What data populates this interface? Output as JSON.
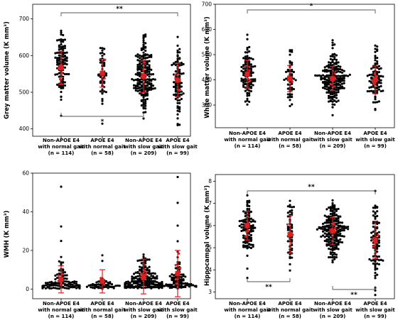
{
  "figure": {
    "categories": [
      [
        "Non-APOE E4",
        "with normal gait",
        "(n = 114)"
      ],
      [
        "APOE E4",
        "with normal gait",
        "(n = 58)"
      ],
      [
        "Non-APOE E4",
        "with slow gait",
        "(n = 209)"
      ],
      [
        "APOE E4",
        "with slow gait",
        "(n = 99)"
      ]
    ]
  },
  "chart_data": [
    {
      "type": "scatter",
      "subtype": "beeswarm",
      "ylabel": "Grey matter volume (K mm³)",
      "ylim": [
        380,
        740
      ],
      "yticks": [
        400,
        500,
        600,
        700
      ],
      "group_n": [
        114,
        58,
        209,
        99
      ],
      "mean": [
        567,
        552,
        543,
        533
      ],
      "sd": [
        45,
        38,
        44,
        45
      ],
      "annotations": [
        {
          "label": "**",
          "groups": [
            1,
            4
          ],
          "position": "top"
        },
        {
          "label": "*",
          "groups": [
            1,
            3
          ],
          "position": "bottom"
        }
      ]
    },
    {
      "type": "scatter",
      "subtype": "beeswarm",
      "ylabel": "White matter volume (K mm³)",
      "ylim": [
        210,
        700
      ],
      "yticks": [
        300,
        400,
        500,
        600,
        700
      ],
      "group_n": [
        114,
        58,
        209,
        99
      ],
      "mean": [
        423,
        405,
        405,
        400
      ],
      "sd": [
        55,
        52,
        48,
        55
      ],
      "annotations": [
        {
          "label": "*",
          "groups": [
            1,
            4
          ],
          "position": "top"
        }
      ]
    },
    {
      "type": "scatter",
      "subtype": "beeswarm",
      "ylabel": "WMH (K mm³)",
      "ylim": [
        -5,
        60
      ],
      "yticks": [
        0,
        20,
        40,
        60
      ],
      "group_n": [
        114,
        58,
        209,
        99
      ],
      "mean": [
        5,
        4,
        6.5,
        8
      ],
      "sd": [
        7,
        6,
        9,
        12
      ],
      "annotations": []
    },
    {
      "type": "scatter",
      "subtype": "beeswarm",
      "ylabel": "Hippocampal volume (K mm³)",
      "ylim": [
        2.7,
        8.3
      ],
      "yticks": [
        3,
        4,
        5,
        6,
        7,
        8
      ],
      "group_n": [
        114,
        58,
        209,
        99
      ],
      "mean": [
        6.0,
        5.6,
        5.75,
        5.35
      ],
      "sd": [
        0.65,
        0.85,
        0.62,
        0.85
      ],
      "annotations": [
        {
          "label": "**",
          "groups": [
            1,
            4
          ],
          "position": "top"
        },
        {
          "label": "**",
          "groups": [
            1,
            2
          ],
          "position": "bottom"
        },
        {
          "label": "**",
          "groups": [
            3,
            4
          ],
          "position": "bottom"
        }
      ]
    }
  ]
}
